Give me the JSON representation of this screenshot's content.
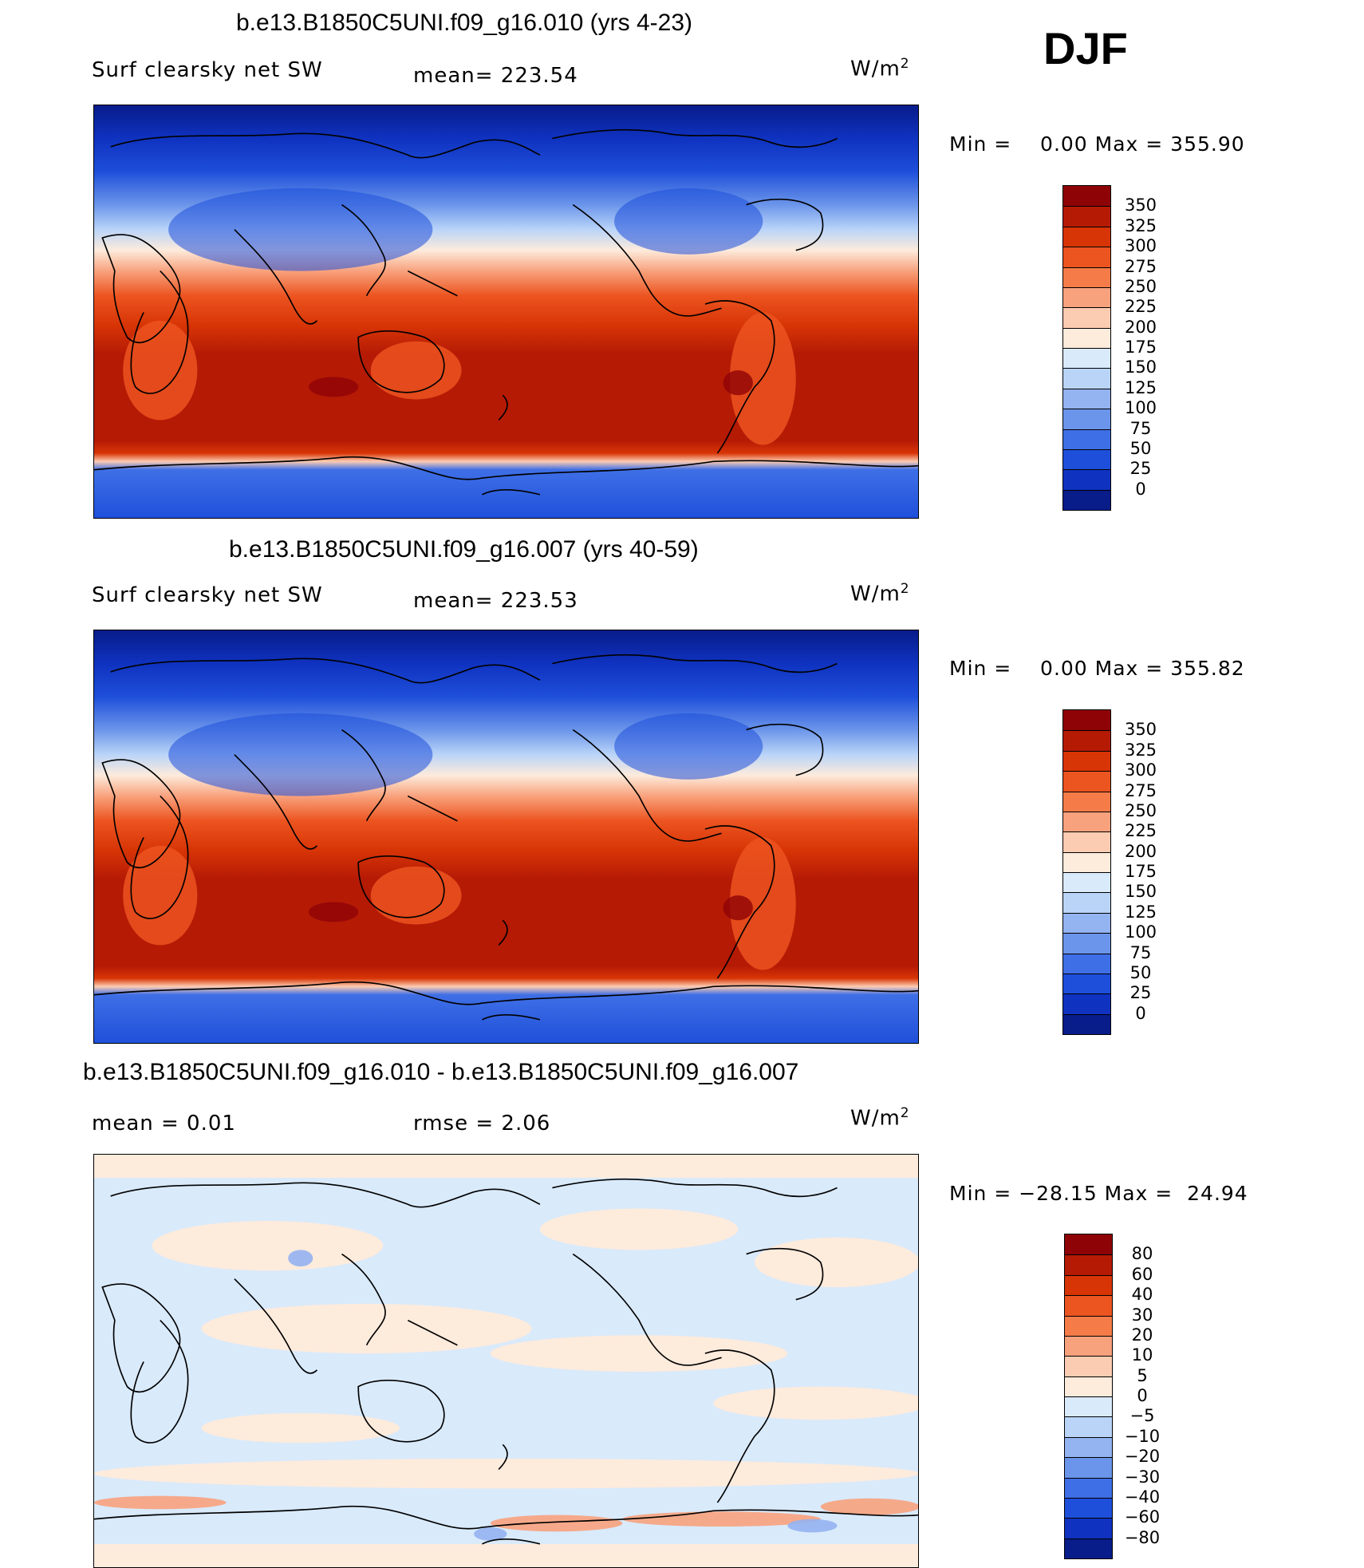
{
  "season": "DJF",
  "units": "W/m",
  "units_exp": "2",
  "panels": [
    {
      "title": "b.e13.B1850C5UNI.f09_g16.010 (yrs 4-23)",
      "variable": "Surf clearsky net SW",
      "stat": "mean= 223.54",
      "stat2": "",
      "minmax": "Min =    0.00 Max = 355.90"
    },
    {
      "title": "b.e13.B1850C5UNI.f09_g16.007 (yrs 40-59)",
      "variable": "Surf clearsky net SW",
      "stat": "mean= 223.53",
      "stat2": "",
      "minmax": "Min =    0.00 Max = 355.82"
    },
    {
      "title": "b.e13.B1850C5UNI.f09_g16.010 - b.e13.B1850C5UNI.f09_g16.007",
      "variable": "mean =    0.01",
      "stat": "rmse =    2.06",
      "stat2": "",
      "minmax": "Min = −28.15 Max =  24.94"
    }
  ],
  "colorbars": {
    "field": {
      "labels": [
        "350",
        "325",
        "300",
        "275",
        "250",
        "225",
        "200",
        "175",
        "150",
        "125",
        "100",
        "75",
        "50",
        "25",
        "0"
      ],
      "colors": [
        "#8e0306",
        "#b51a05",
        "#d83506",
        "#ec5420",
        "#f57c48",
        "#f8a27d",
        "#fcccb2",
        "#fdebdc",
        "#d9eafb",
        "#bad4f8",
        "#93b3f1",
        "#6b95ea",
        "#3f6fe6",
        "#1e4fda",
        "#0f32c0",
        "#081c8a"
      ]
    },
    "diff": {
      "labels": [
        "80",
        "60",
        "40",
        "30",
        "20",
        "10",
        "5",
        "0",
        "−5",
        "−10",
        "−20",
        "−30",
        "−40",
        "−60",
        "−80"
      ],
      "colors": [
        "#8e0306",
        "#b51a05",
        "#d83506",
        "#ec5420",
        "#f57c48",
        "#f8a27d",
        "#fcccb2",
        "#fdebdc",
        "#d9eafb",
        "#bad4f8",
        "#93b3f1",
        "#6b95ea",
        "#3f6fe6",
        "#1e4fda",
        "#0f32c0",
        "#081c8a"
      ]
    }
  }
}
